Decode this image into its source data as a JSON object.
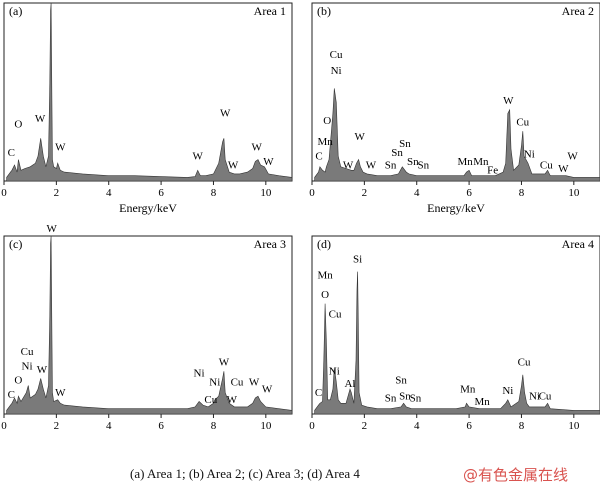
{
  "figure": {
    "caption": "(a) Area 1; (b) Area 2; (c) Area 3; (d) Area 4",
    "watermark": "@有色金属在线"
  },
  "chart_data": [
    {
      "type": "area",
      "panel_label": "(a)",
      "title": "Area 1",
      "xlabel": "Energy/keV",
      "ylabel": "",
      "xlim": [
        0,
        11
      ],
      "ylim": [
        0,
        100
      ],
      "xticks": [
        0,
        2,
        4,
        6,
        8,
        10
      ],
      "show_xlabel": true,
      "series": [
        {
          "x": [
            0.1,
            0.25,
            0.3,
            0.4,
            0.5,
            0.55,
            0.65,
            0.8,
            1.0,
            1.2,
            1.3,
            1.4,
            1.5,
            1.6,
            1.7,
            1.75,
            1.78,
            1.8,
            1.82,
            1.85,
            1.9,
            2.0,
            2.05,
            2.15,
            2.3,
            3,
            4,
            5,
            6,
            7,
            7.3,
            7.4,
            7.5,
            7.7,
            8.0,
            8.2,
            8.35,
            8.4,
            8.45,
            8.6,
            8.8,
            9.0,
            9.3,
            9.5,
            9.6,
            9.7,
            9.8,
            9.95,
            10.1,
            10.5,
            11
          ],
          "y": [
            2,
            5,
            6,
            9,
            5,
            12,
            6,
            7,
            8,
            10,
            14,
            24,
            14,
            8,
            14,
            55,
            96,
            100,
            60,
            12,
            8,
            7,
            10,
            6,
            5,
            4,
            3,
            3,
            2.5,
            2,
            2.5,
            6,
            3,
            3,
            4,
            10,
            22,
            24,
            12,
            5,
            4,
            4,
            5,
            7,
            11,
            12,
            9,
            8,
            4,
            3,
            2
          ]
        }
      ],
      "peak_labels": [
        {
          "text": "C",
          "x": 0.28,
          "y": 13
        },
        {
          "text": "O",
          "x": 0.55,
          "y": 29
        },
        {
          "text": "W",
          "x": 1.38,
          "y": 32
        },
        {
          "text": "W",
          "x": 1.82,
          "y": 101
        },
        {
          "text": "W",
          "x": 2.15,
          "y": 16
        },
        {
          "text": "W",
          "x": 7.4,
          "y": 11
        },
        {
          "text": "W",
          "x": 8.45,
          "y": 35
        },
        {
          "text": "W",
          "x": 8.75,
          "y": 6
        },
        {
          "text": "W",
          "x": 9.65,
          "y": 16
        },
        {
          "text": "W",
          "x": 10.1,
          "y": 8
        }
      ]
    },
    {
      "type": "area",
      "panel_label": "(b)",
      "title": "Area 2",
      "xlabel": "Energy/keV",
      "ylabel": "",
      "xlim": [
        0,
        11
      ],
      "ylim": [
        0,
        100
      ],
      "xticks": [
        0,
        2,
        4,
        6,
        8,
        10
      ],
      "show_xlabel": true,
      "series": [
        {
          "x": [
            0.1,
            0.25,
            0.3,
            0.4,
            0.5,
            0.55,
            0.65,
            0.8,
            0.85,
            0.93,
            1.0,
            1.1,
            1.3,
            1.5,
            1.6,
            1.7,
            1.78,
            1.85,
            1.95,
            2.1,
            2.5,
            3.0,
            3.3,
            3.45,
            3.6,
            3.7,
            4.0,
            5.0,
            5.8,
            5.9,
            6.0,
            6.1,
            6.5,
            7.0,
            7.3,
            7.4,
            7.48,
            7.55,
            7.6,
            7.7,
            7.9,
            8.0,
            8.05,
            8.1,
            8.25,
            8.4,
            8.9,
            9.0,
            9.1,
            9.7,
            10,
            11
          ],
          "y": [
            2,
            5,
            8,
            6,
            5,
            8,
            12,
            38,
            52,
            44,
            14,
            8,
            7,
            6,
            6,
            10,
            12,
            8,
            5,
            4,
            3,
            3,
            4,
            8,
            5,
            4,
            3,
            3,
            3,
            5,
            6,
            3,
            3,
            3,
            5,
            10,
            38,
            40,
            18,
            6,
            9,
            20,
            28,
            14,
            10,
            4,
            4,
            6,
            3,
            3,
            2,
            2
          ]
        }
      ],
      "peak_labels": [
        {
          "text": "C",
          "x": 0.27,
          "y": 11
        },
        {
          "text": "Mn",
          "x": 0.5,
          "y": 19
        },
        {
          "text": "O",
          "x": 0.58,
          "y": 31
        },
        {
          "text": "Ni",
          "x": 0.92,
          "y": 59
        },
        {
          "text": "Cu",
          "x": 0.92,
          "y": 68
        },
        {
          "text": "W",
          "x": 1.38,
          "y": 6
        },
        {
          "text": "W",
          "x": 1.82,
          "y": 22
        },
        {
          "text": "W",
          "x": 2.25,
          "y": 6
        },
        {
          "text": "Sn",
          "x": 3.0,
          "y": 6
        },
        {
          "text": "Sn",
          "x": 3.25,
          "y": 13
        },
        {
          "text": "Sn",
          "x": 3.55,
          "y": 18
        },
        {
          "text": "Sn",
          "x": 3.85,
          "y": 8
        },
        {
          "text": "Sn",
          "x": 4.25,
          "y": 6
        },
        {
          "text": "Mn",
          "x": 5.85,
          "y": 8
        },
        {
          "text": "Mn",
          "x": 6.45,
          "y": 8
        },
        {
          "text": "Fe",
          "x": 6.9,
          "y": 3
        },
        {
          "text": "W",
          "x": 7.5,
          "y": 42
        },
        {
          "text": "Cu",
          "x": 8.05,
          "y": 30
        },
        {
          "text": "Ni",
          "x": 8.3,
          "y": 12
        },
        {
          "text": "Cu",
          "x": 8.95,
          "y": 6
        },
        {
          "text": "W",
          "x": 9.6,
          "y": 4
        },
        {
          "text": "W",
          "x": 9.95,
          "y": 11
        }
      ]
    },
    {
      "type": "area",
      "panel_label": "(c)",
      "title": "Area 3",
      "xlabel": "",
      "ylabel": "",
      "xlim": [
        0,
        11
      ],
      "ylim": [
        0,
        100
      ],
      "xticks": [
        0,
        2,
        4,
        6,
        8,
        10
      ],
      "show_xlabel": false,
      "series": [
        {
          "x": [
            0.1,
            0.25,
            0.3,
            0.4,
            0.5,
            0.55,
            0.65,
            0.85,
            0.93,
            1.0,
            1.2,
            1.3,
            1.4,
            1.5,
            1.6,
            1.7,
            1.75,
            1.78,
            1.8,
            1.82,
            1.85,
            1.9,
            2.05,
            2.15,
            2.3,
            3,
            4,
            5,
            6,
            7,
            7.3,
            7.45,
            7.6,
            7.8,
            8.0,
            8.05,
            8.2,
            8.35,
            8.4,
            8.45,
            8.6,
            8.8,
            9.3,
            9.5,
            9.6,
            9.7,
            9.8,
            10.0,
            10.5,
            11
          ],
          "y": [
            2,
            5,
            6,
            9,
            6,
            10,
            7,
            12,
            16,
            9,
            11,
            14,
            20,
            14,
            9,
            16,
            55,
            96,
            100,
            60,
            12,
            7,
            8,
            6,
            5,
            4,
            3,
            3,
            3,
            3,
            4,
            7,
            5,
            4,
            6,
            8,
            10,
            20,
            24,
            12,
            6,
            4,
            4,
            6,
            9,
            10,
            7,
            4,
            3,
            2
          ]
        }
      ],
      "peak_labels": [
        {
          "text": "C",
          "x": 0.28,
          "y": 8
        },
        {
          "text": "O",
          "x": 0.55,
          "y": 16
        },
        {
          "text": "Ni",
          "x": 0.88,
          "y": 24
        },
        {
          "text": "Cu",
          "x": 0.88,
          "y": 32
        },
        {
          "text": "W",
          "x": 1.45,
          "y": 22
        },
        {
          "text": "W",
          "x": 1.82,
          "y": 101
        },
        {
          "text": "W",
          "x": 2.15,
          "y": 9
        },
        {
          "text": "Ni",
          "x": 7.45,
          "y": 20
        },
        {
          "text": "Cu",
          "x": 7.9,
          "y": 5
        },
        {
          "text": "Ni",
          "x": 8.05,
          "y": 15
        },
        {
          "text": "W",
          "x": 8.4,
          "y": 26
        },
        {
          "text": "W",
          "x": 8.7,
          "y": 5
        },
        {
          "text": "Cu",
          "x": 8.9,
          "y": 15
        },
        {
          "text": "W",
          "x": 9.55,
          "y": 15
        },
        {
          "text": "W",
          "x": 10.05,
          "y": 11
        }
      ]
    },
    {
      "type": "area",
      "panel_label": "(d)",
      "title": "Area 4",
      "xlabel": "",
      "ylabel": "",
      "xlim": [
        0,
        11
      ],
      "ylim": [
        0,
        100
      ],
      "xticks": [
        0,
        2,
        4,
        6,
        8,
        10
      ],
      "show_xlabel": false,
      "series": [
        {
          "x": [
            0.1,
            0.25,
            0.3,
            0.4,
            0.45,
            0.5,
            0.55,
            0.6,
            0.7,
            0.8,
            0.85,
            0.93,
            1.0,
            1.1,
            1.3,
            1.45,
            1.5,
            1.6,
            1.68,
            1.72,
            1.74,
            1.76,
            1.8,
            1.9,
            2.1,
            2.5,
            3.0,
            3.4,
            3.5,
            3.6,
            3.8,
            4.5,
            5.5,
            5.85,
            5.9,
            6.0,
            6.4,
            7.2,
            7.4,
            7.48,
            7.6,
            7.9,
            8.0,
            8.05,
            8.12,
            8.2,
            8.3,
            8.9,
            9.0,
            9.1,
            10,
            11
          ],
          "y": [
            2,
            5,
            6,
            7,
            30,
            62,
            40,
            8,
            8,
            14,
            26,
            18,
            8,
            6,
            6,
            14,
            12,
            6,
            30,
            70,
            80,
            60,
            12,
            5,
            4,
            3,
            3,
            4,
            6,
            4,
            3,
            3,
            3,
            4,
            6,
            4,
            3,
            3,
            6,
            8,
            4,
            7,
            16,
            22,
            12,
            6,
            4,
            4,
            6,
            3,
            2,
            2
          ]
        }
      ],
      "peak_labels": [
        {
          "text": "C",
          "x": 0.25,
          "y": 9
        },
        {
          "text": "O",
          "x": 0.5,
          "y": 64
        },
        {
          "text": "Mn",
          "x": 0.5,
          "y": 75
        },
        {
          "text": "Cu",
          "x": 0.88,
          "y": 53
        },
        {
          "text": "Ni",
          "x": 0.85,
          "y": 21
        },
        {
          "text": "Al",
          "x": 1.45,
          "y": 14
        },
        {
          "text": "Si",
          "x": 1.74,
          "y": 84
        },
        {
          "text": "Sn",
          "x": 3.0,
          "y": 6
        },
        {
          "text": "Sn",
          "x": 3.4,
          "y": 16
        },
        {
          "text": "Sn",
          "x": 3.55,
          "y": 7
        },
        {
          "text": "Sn",
          "x": 3.95,
          "y": 6
        },
        {
          "text": "Mn",
          "x": 5.95,
          "y": 11
        },
        {
          "text": "Mn",
          "x": 6.5,
          "y": 4
        },
        {
          "text": "Ni",
          "x": 7.48,
          "y": 10
        },
        {
          "text": "Cu",
          "x": 8.1,
          "y": 26
        },
        {
          "text": "Ni",
          "x": 8.5,
          "y": 7
        },
        {
          "text": "Cu",
          "x": 8.9,
          "y": 7
        }
      ]
    }
  ]
}
